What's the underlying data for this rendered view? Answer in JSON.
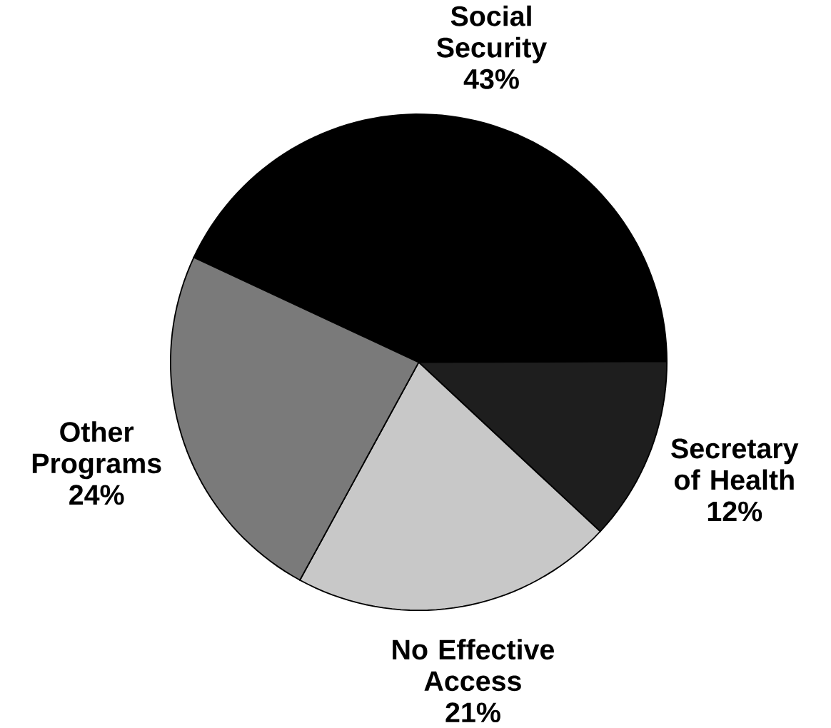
{
  "chart_data": {
    "type": "pie",
    "categories": [
      "Social Security",
      "Secretary of Health",
      "No Effective Access",
      "Other Programs"
    ],
    "values": [
      43,
      12,
      21,
      24
    ],
    "value_labels": [
      "43%",
      "12%",
      "21%",
      "24%"
    ],
    "colors": [
      "#000000",
      "#1e1e1e",
      "#c8c8c8",
      "#7a7a7a"
    ]
  }
}
